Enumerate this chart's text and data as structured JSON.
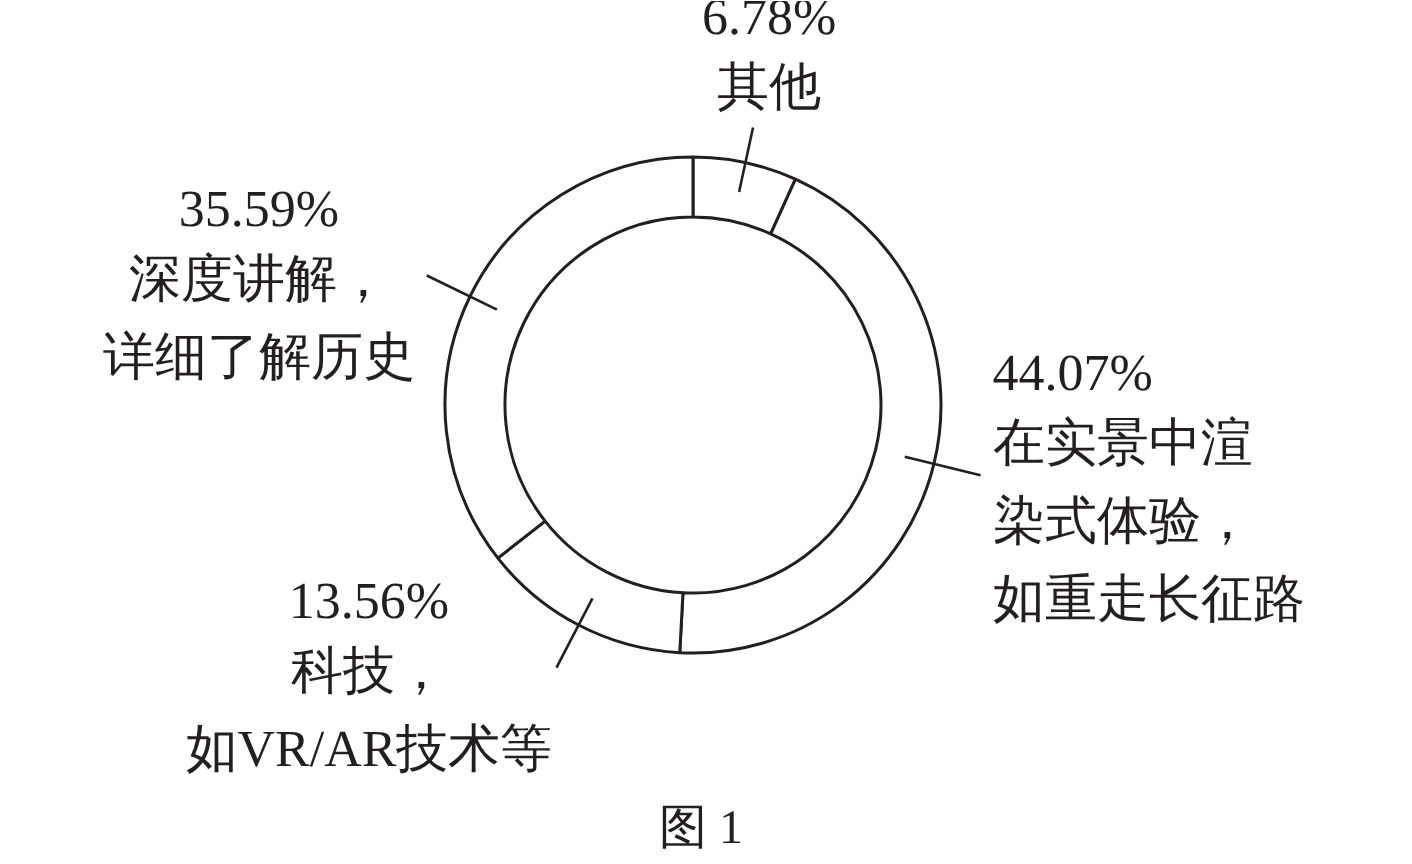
{
  "chart_data": {
    "type": "donut",
    "categories": [
      "其他",
      "在实景中渲染式体验，如重走长征路",
      "科技，如VR/AR技术等",
      "深度讲解，详细了解历史"
    ],
    "values": [
      6.78,
      44.07,
      13.56,
      35.59
    ],
    "value_labels": [
      "6.78%",
      "44.07%",
      "13.56%",
      "35.59%"
    ],
    "colors": [
      "#ffffff",
      "#ffffff",
      "#ffffff",
      "#ffffff"
    ],
    "annotations": [
      "图 1"
    ]
  }
}
